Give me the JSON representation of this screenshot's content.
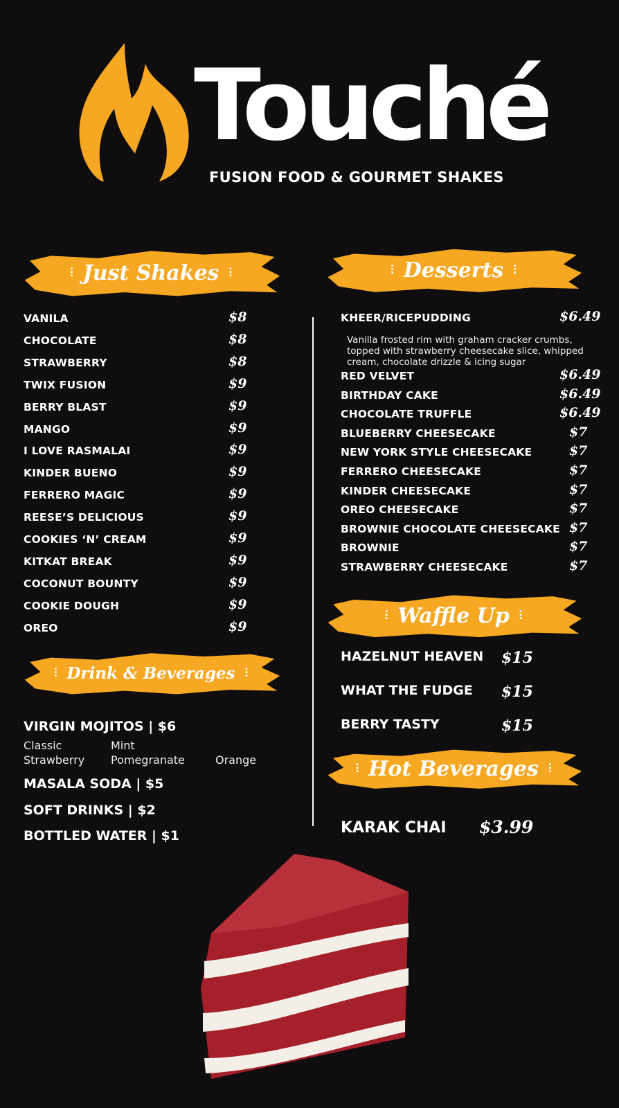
{
  "brand": {
    "name": "Touché",
    "tagline": "FUSION FOOD & GOURMET SHAKES",
    "accent": "#f7a823",
    "background": "#0f0d0e"
  },
  "shakes": {
    "title": "Just Shakes",
    "items": [
      {
        "name": "VANILA",
        "price": "$8"
      },
      {
        "name": "CHOCOLATE",
        "price": "$8"
      },
      {
        "name": "STRAWBERRY",
        "price": "$8"
      },
      {
        "name": "TWIX FUSION",
        "price": "$9"
      },
      {
        "name": "BERRY BLAST",
        "price": "$9"
      },
      {
        "name": "MANGO",
        "price": "$9"
      },
      {
        "name": "I LOVE RASMALAI",
        "price": "$9"
      },
      {
        "name": "KINDER BUENO",
        "price": "$9"
      },
      {
        "name": "FERRERO MAGIC",
        "price": "$9"
      },
      {
        "name": "REESE’S DELICIOUS",
        "price": "$9"
      },
      {
        "name": "COOKIES ‘N’ CREAM",
        "price": "$9"
      },
      {
        "name": "KITKAT BREAK",
        "price": "$9"
      },
      {
        "name": "COCONUT BOUNTY",
        "price": "$9"
      },
      {
        "name": "COOKIE DOUGH",
        "price": "$9"
      },
      {
        "name": "OREO",
        "price": "$9"
      }
    ]
  },
  "drinks": {
    "title": "Drink & Beverages",
    "mojitos": "VIRGIN MOJITOS | $6",
    "flavors": [
      "Classic",
      "Mint",
      "Strawberry",
      "Pomegranate",
      "Orange"
    ],
    "items": [
      "MASALA SODA | $5",
      "SOFT DRINKS | $2",
      "BOTTLED WATER | $1"
    ]
  },
  "desserts": {
    "title": "Desserts",
    "featured": {
      "name": "KHEER/RICEPUDDING",
      "price": "$6.49",
      "description": "Vanilla frosted rim with graham cracker crumbs, topped with strawberry cheesecake slice, whipped cream, chocolate drizzle & icing sugar"
    },
    "items": [
      {
        "name": "RED VELVET",
        "price": "$6.49"
      },
      {
        "name": "BIRTHDAY CAKE",
        "price": "$6.49"
      },
      {
        "name": "CHOCOLATE TRUFFLE",
        "price": "$6.49"
      },
      {
        "name": "BLUEBERRY CHEESECAKE",
        "price": "$7"
      },
      {
        "name": "NEW YORK STYLE CHEESECAKE",
        "price": "$7"
      },
      {
        "name": "FERRERO CHEESECAKE",
        "price": "$7"
      },
      {
        "name": "KINDER CHEESECAKE",
        "price": "$7"
      },
      {
        "name": "OREO CHEESECAKE",
        "price": "$7"
      },
      {
        "name": "BROWNIE CHOCOLATE CHEESECAKE",
        "price": "$7"
      },
      {
        "name": "BROWNIE",
        "price": "$7"
      },
      {
        "name": "STRAWBERRY CHEESECAKE",
        "price": "$7"
      }
    ]
  },
  "waffles": {
    "title": "Waffle Up",
    "items": [
      {
        "name": "HAZELNUT HEAVEN",
        "price": "$15"
      },
      {
        "name": "WHAT THE FUDGE",
        "price": "$15"
      },
      {
        "name": "BERRY TASTY",
        "price": "$15"
      }
    ]
  },
  "hot": {
    "title": "Hot Beverages",
    "items": [
      {
        "name": "KARAK CHAI",
        "price": "$3.99"
      }
    ]
  }
}
